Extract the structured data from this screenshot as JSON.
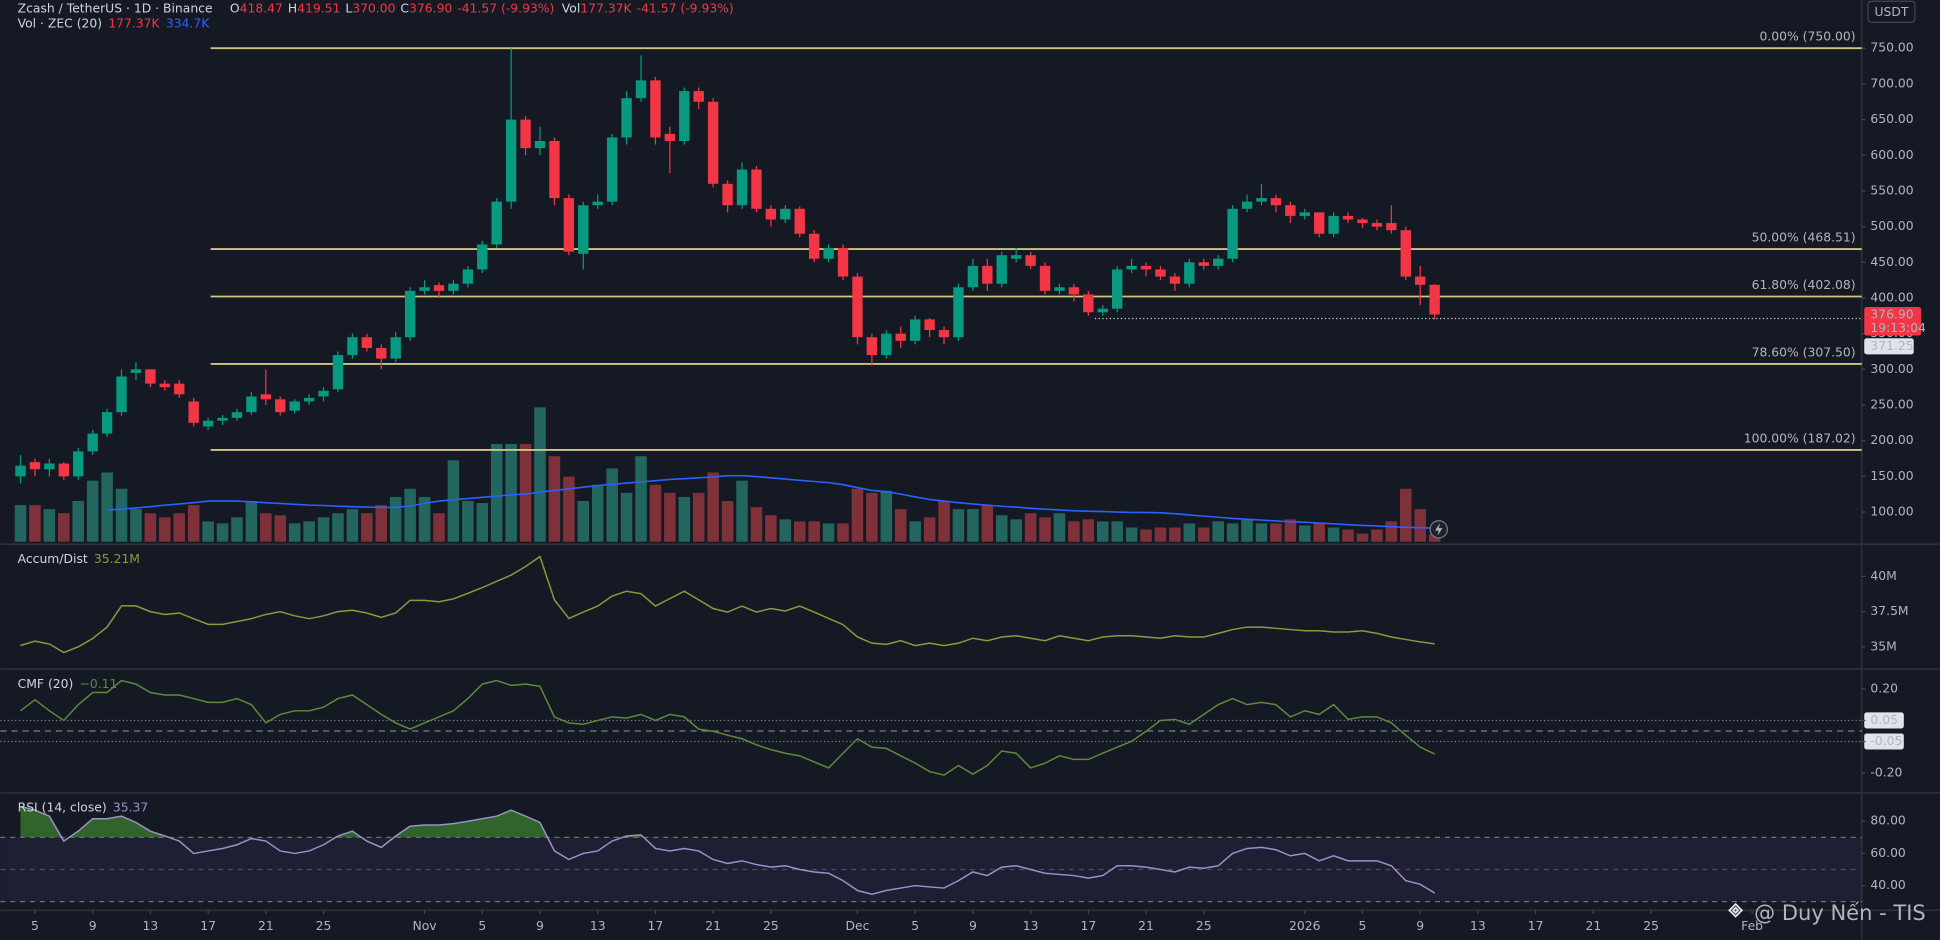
{
  "currency": "USDT",
  "watermark": "@ Duy Nến - TIS",
  "chart_data": [
    {
      "type": "candlestick",
      "legend": {
        "symbol": "Zcash / TetherUS · 1D · Binance",
        "ohlc": [
          {
            "key": "O",
            "value": "418.47"
          },
          {
            "key": "H",
            "value": "419.51"
          },
          {
            "key": "L",
            "value": "370.00"
          },
          {
            "key": "C",
            "value": "376.90"
          }
        ],
        "change": "-41.57 (-9.93%)",
        "vol_key": "Vol",
        "vol_value": "177.37K",
        "vol_change": "-41.57 (-9.93%)",
        "vol_name": "Vol · ZEC (20)",
        "vol_last": "177.37K",
        "vol_ma_last": "334.7K"
      },
      "open": [
        150,
        170,
        160,
        168,
        150,
        185,
        210,
        240,
        295,
        300,
        280,
        280,
        255,
        220,
        228,
        232,
        240,
        265,
        258,
        242,
        255,
        262,
        272,
        320,
        345,
        330,
        315,
        345,
        410,
        418,
        410,
        420,
        440,
        475,
        535,
        650,
        610,
        620,
        540,
        462,
        530,
        535,
        625,
        680,
        705,
        630,
        620,
        690,
        675,
        560,
        530,
        580,
        525,
        510,
        525,
        490,
        455,
        470,
        430,
        345,
        320,
        350,
        340,
        370,
        355,
        345,
        415,
        445,
        420,
        455,
        460,
        445,
        410,
        415,
        405,
        380,
        385,
        440,
        445,
        440,
        430,
        420,
        450,
        445,
        455,
        525,
        535,
        540,
        530,
        515,
        520,
        490,
        515,
        510,
        505,
        505,
        495,
        430,
        418.47
      ],
      "high": [
        180,
        175,
        175,
        170,
        190,
        215,
        245,
        300,
        310,
        300,
        285,
        285,
        260,
        232,
        236,
        245,
        268,
        300,
        262,
        258,
        265,
        275,
        325,
        350,
        350,
        335,
        352,
        415,
        425,
        422,
        425,
        445,
        480,
        540,
        750,
        655,
        640,
        625,
        545,
        535,
        545,
        630,
        690,
        740,
        710,
        640,
        695,
        695,
        680,
        565,
        590,
        585,
        530,
        530,
        528,
        495,
        475,
        475,
        435,
        350,
        355,
        360,
        375,
        372,
        360,
        420,
        455,
        455,
        465,
        470,
        465,
        450,
        420,
        420,
        410,
        390,
        445,
        455,
        450,
        445,
        435,
        455,
        455,
        460,
        530,
        545,
        560,
        545,
        535,
        525,
        520,
        520,
        520,
        512,
        510,
        530,
        500,
        445,
        419.51
      ],
      "low": [
        140,
        150,
        150,
        145,
        145,
        180,
        205,
        235,
        285,
        275,
        270,
        260,
        220,
        215,
        222,
        228,
        236,
        250,
        235,
        238,
        250,
        255,
        268,
        315,
        325,
        300,
        310,
        340,
        405,
        400,
        405,
        415,
        435,
        470,
        525,
        600,
        600,
        530,
        460,
        440,
        525,
        530,
        615,
        675,
        615,
        575,
        615,
        665,
        555,
        520,
        525,
        520,
        500,
        505,
        485,
        450,
        450,
        425,
        335,
        305,
        315,
        330,
        335,
        345,
        335,
        340,
        410,
        410,
        415,
        450,
        440,
        405,
        405,
        395,
        375,
        375,
        380,
        435,
        430,
        425,
        410,
        415,
        440,
        440,
        450,
        520,
        530,
        520,
        505,
        510,
        485,
        485,
        505,
        498,
        495,
        490,
        425,
        390,
        370
      ],
      "close": [
        165,
        160,
        168,
        150,
        185,
        210,
        240,
        290,
        300,
        280,
        275,
        265,
        225,
        228,
        232,
        240,
        262,
        258,
        240,
        255,
        260,
        270,
        320,
        345,
        330,
        315,
        345,
        410,
        415,
        410,
        420,
        440,
        475,
        535,
        650,
        610,
        620,
        540,
        465,
        530,
        535,
        625,
        680,
        705,
        625,
        620,
        690,
        675,
        560,
        530,
        580,
        525,
        510,
        525,
        490,
        455,
        470,
        430,
        345,
        320,
        350,
        340,
        370,
        355,
        345,
        415,
        445,
        420,
        460,
        460,
        445,
        410,
        415,
        405,
        380,
        385,
        440,
        445,
        440,
        430,
        420,
        450,
        445,
        455,
        525,
        535,
        540,
        530,
        515,
        520,
        490,
        515,
        510,
        505,
        500,
        495,
        430,
        418.47,
        376.9
      ],
      "up_color": "#089981",
      "down_color": "#f23645",
      "ylim": [
        58.4,
        817.6
      ],
      "yticks": [
        {
          "value": 100,
          "label": "100.00"
        },
        {
          "value": 150,
          "label": "150.00"
        },
        {
          "value": 200,
          "label": "200.00"
        },
        {
          "value": 250,
          "label": "250.00"
        },
        {
          "value": 300,
          "label": "300.00"
        },
        {
          "value": 350,
          "label": "350.00"
        },
        {
          "value": 400,
          "label": "400.00"
        },
        {
          "value": 450,
          "label": "450.00"
        },
        {
          "value": 500,
          "label": "500.00"
        },
        {
          "value": 550,
          "label": "550.00"
        },
        {
          "value": 600,
          "label": "600.00"
        },
        {
          "value": 650,
          "label": "650.00"
        },
        {
          "value": 700,
          "label": "700.00"
        },
        {
          "value": 750,
          "label": "750.00"
        }
      ],
      "xlim": [
        -1.4,
        127.6
      ],
      "xticks": [
        {
          "value": 1,
          "label": "5"
        },
        {
          "value": 5,
          "label": "9"
        },
        {
          "value": 9,
          "label": "13"
        },
        {
          "value": 13,
          "label": "17"
        },
        {
          "value": 17,
          "label": "21"
        },
        {
          "value": 21,
          "label": "25"
        },
        {
          "value": 28,
          "label": "Nov"
        },
        {
          "value": 32,
          "label": "5"
        },
        {
          "value": 36,
          "label": "9"
        },
        {
          "value": 40,
          "label": "13"
        },
        {
          "value": 44,
          "label": "17"
        },
        {
          "value": 48,
          "label": "21"
        },
        {
          "value": 52,
          "label": "25"
        },
        {
          "value": 58,
          "label": "Dec"
        },
        {
          "value": 62,
          "label": "5"
        },
        {
          "value": 66,
          "label": "9"
        },
        {
          "value": 70,
          "label": "13"
        },
        {
          "value": 74,
          "label": "17"
        },
        {
          "value": 78,
          "label": "21"
        },
        {
          "value": 82,
          "label": "25"
        },
        {
          "value": 89,
          "label": "2026"
        },
        {
          "value": 93,
          "label": "5"
        },
        {
          "value": 97,
          "label": "9"
        },
        {
          "value": 101,
          "label": "13"
        },
        {
          "value": 105,
          "label": "17"
        },
        {
          "value": 109,
          "label": "21"
        },
        {
          "value": 113,
          "label": "25"
        },
        {
          "value": 120,
          "label": "Feb"
        }
      ],
      "grid": false,
      "fib_color": "#cfc57c",
      "fib_levels": [
        {
          "value": 750,
          "label": "0.00% (750.00)"
        },
        {
          "value": 468.51,
          "label": "50.00% (468.51)"
        },
        {
          "value": 402.08,
          "label": "61.80% (402.08)"
        },
        {
          "value": 307.5,
          "label": "78.60% (307.50)"
        },
        {
          "value": 187.02,
          "label": "100.00% (187.02)"
        }
      ],
      "last_price": {
        "value": 376.9,
        "label": "376.90"
      },
      "countdown": "19:13:04",
      "price_line": 371.25,
      "volume": {
        "values": [
          900,
          900,
          800,
          700,
          1000,
          1500,
          1700,
          1300,
          800,
          700,
          600,
          700,
          900,
          500,
          450,
          600,
          1000,
          700,
          650,
          450,
          500,
          600,
          700,
          800,
          700,
          900,
          1100,
          1300,
          1100,
          700,
          2000,
          1000,
          950,
          2400,
          2400,
          2400,
          3300,
          2100,
          1600,
          1000,
          1400,
          1800,
          1200,
          2100,
          1400,
          1200,
          1100,
          1200,
          1700,
          1000,
          1500,
          850,
          650,
          550,
          500,
          500,
          450,
          450,
          1300,
          1200,
          1250,
          800,
          500,
          600,
          1000,
          800,
          800,
          900,
          650,
          550,
          700,
          600,
          700,
          500,
          550,
          500,
          500,
          350,
          300,
          350,
          350,
          450,
          350,
          500,
          450,
          550,
          450,
          450,
          550,
          400,
          450,
          350,
          300,
          200,
          300,
          500,
          1300,
          800,
          177.37
        ],
        "ma": [
          null,
          null,
          null,
          null,
          null,
          null,
          780,
          800,
          830,
          860,
          900,
          930,
          960,
          1000,
          1000,
          1000,
          980,
          960,
          940,
          920,
          900,
          890,
          870,
          860,
          850,
          840,
          840,
          880,
          940,
          1000,
          1030,
          1060,
          1090,
          1120,
          1150,
          1170,
          1220,
          1260,
          1300,
          1340,
          1380,
          1410,
          1440,
          1470,
          1500,
          1530,
          1550,
          1570,
          1590,
          1620,
          1620,
          1600,
          1570,
          1540,
          1510,
          1480,
          1450,
          1400,
          1330,
          1260,
          1230,
          1170,
          1100,
          1040,
          1000,
          960,
          930,
          900,
          870,
          850,
          820,
          800,
          780,
          760,
          750,
          740,
          730,
          720,
          720,
          710,
          690,
          660,
          630,
          600,
          570,
          550,
          530,
          510,
          490,
          480,
          460,
          440,
          420,
          400,
          390,
          370,
          355,
          345,
          334.7
        ],
        "ylim": [
          0,
          13300
        ],
        "up_color": "#22665f",
        "down_color": "#7e3139",
        "ma_color": "#2962ff"
      }
    },
    {
      "type": "line",
      "name": "Accum/Dist",
      "value_label": "35.21M",
      "color": "#8a9a3c",
      "values": [
        35.1,
        35.4,
        35.2,
        34.6,
        35.0,
        35.6,
        36.4,
        37.9,
        37.9,
        37.5,
        37.3,
        37.4,
        37.0,
        36.6,
        36.6,
        36.8,
        37.0,
        37.3,
        37.5,
        37.2,
        37.0,
        37.2,
        37.5,
        37.6,
        37.4,
        37.1,
        37.4,
        38.3,
        38.3,
        38.2,
        38.4,
        38.8,
        39.2,
        39.65,
        40.09,
        40.7,
        41.4,
        38.33,
        37.02,
        37.46,
        37.89,
        38.6,
        38.95,
        38.77,
        37.89,
        38.42,
        38.95,
        38.33,
        37.72,
        37.46,
        37.89,
        37.46,
        37.72,
        37.54,
        37.89,
        37.46,
        37.02,
        36.58,
        35.7,
        35.26,
        35.18,
        35.44,
        35.09,
        35.26,
        35.09,
        35.26,
        35.61,
        35.44,
        35.7,
        35.79,
        35.61,
        35.44,
        35.79,
        35.61,
        35.44,
        35.7,
        35.79,
        35.79,
        35.7,
        35.61,
        35.79,
        35.7,
        35.7,
        35.96,
        36.23,
        36.4,
        36.4,
        36.32,
        36.23,
        36.14,
        36.14,
        36.05,
        36.05,
        36.14,
        35.96,
        35.7,
        35.53,
        35.35,
        35.21
      ],
      "ylim": [
        33.51,
        42.19
      ],
      "yticks": [
        {
          "value": 40,
          "label": "40M"
        },
        {
          "value": 37.5,
          "label": "37.5M"
        },
        {
          "value": 35,
          "label": "35M"
        }
      ]
    },
    {
      "type": "line",
      "name": "CMF (20)",
      "value_label": "−0.11",
      "color": "#5e8a3a",
      "values": [
        0.096,
        0.148,
        0.096,
        0.05,
        0.125,
        0.183,
        0.183,
        0.24,
        0.223,
        0.183,
        0.171,
        0.171,
        0.154,
        0.136,
        0.136,
        0.154,
        0.125,
        0.038,
        0.079,
        0.096,
        0.096,
        0.113,
        0.154,
        0.171,
        0.125,
        0.079,
        0.038,
        0.009,
        0.038,
        0.067,
        0.096,
        0.154,
        0.223,
        0.24,
        0.217,
        0.223,
        0.212,
        0.067,
        0.038,
        0.032,
        0.05,
        0.067,
        0.061,
        0.079,
        0.05,
        0.079,
        0.067,
        0.009,
        -0.002,
        -0.02,
        -0.037,
        -0.066,
        -0.089,
        -0.106,
        -0.118,
        -0.147,
        -0.176,
        -0.106,
        -0.037,
        -0.077,
        -0.083,
        -0.118,
        -0.153,
        -0.193,
        -0.21,
        -0.164,
        -0.205,
        -0.164,
        -0.095,
        -0.106,
        -0.176,
        -0.153,
        -0.118,
        -0.135,
        -0.135,
        -0.106,
        -0.077,
        -0.049,
        -0.002,
        0.05,
        0.055,
        0.032,
        0.079,
        0.125,
        0.154,
        0.125,
        0.136,
        0.125,
        0.067,
        0.096,
        0.079,
        0.125,
        0.055,
        0.067,
        0.067,
        0.038,
        -0.02,
        -0.077,
        -0.11
      ],
      "ylim": [
        -0.288,
        0.288
      ],
      "yticks": [
        {
          "value": 0.2,
          "label": "0.20"
        },
        0.05,
        -0.05,
        {
          "value": -0.2,
          "label": "-0.20"
        }
      ],
      "reference_lines": [
        0.05,
        0,
        -0.05
      ]
    },
    {
      "type": "line",
      "name": "RSI (14, close)",
      "value_label": "35.37",
      "color": "#9d90c8",
      "values": [
        89.2,
        86.9,
        83.1,
        67.7,
        73.8,
        81.5,
        81.5,
        83.1,
        79.2,
        73.8,
        70.8,
        67.7,
        60,
        61.5,
        63.1,
        65.4,
        69.2,
        67.7,
        61.5,
        60,
        61.5,
        65.4,
        70.8,
        73.8,
        67.7,
        63.8,
        70.8,
        76.9,
        77.7,
        77.7,
        78.5,
        80,
        81.5,
        83.1,
        86.9,
        83.1,
        79.2,
        61.5,
        56.2,
        60,
        61.5,
        67.7,
        70.8,
        71.5,
        63.1,
        61.5,
        63.1,
        61.5,
        56.2,
        53.8,
        55.4,
        53.1,
        51.5,
        52.3,
        50,
        48.5,
        47.7,
        43.1,
        36.9,
        34.6,
        36.9,
        38.5,
        40,
        39.2,
        38.5,
        43.1,
        48.5,
        46.2,
        51.5,
        52.3,
        50,
        47.7,
        46.9,
        46.2,
        44.6,
        46.2,
        52.3,
        52.3,
        51.5,
        50,
        48.5,
        51.5,
        50.8,
        52.3,
        60,
        63.1,
        63.8,
        62.3,
        58.5,
        60,
        55.4,
        58.5,
        55.4,
        55.4,
        55.4,
        52.3,
        43.1,
        40.8,
        35.37
      ],
      "ylim": [
        25.4,
        96.9
      ],
      "yticks": [
        {
          "value": 80,
          "label": "80.00"
        },
        {
          "value": 60,
          "label": "60.00"
        },
        {
          "value": 40,
          "label": "40.00"
        }
      ],
      "bands": [
        70,
        50,
        30
      ],
      "overbought_fill": "#3a7d2c"
    }
  ]
}
